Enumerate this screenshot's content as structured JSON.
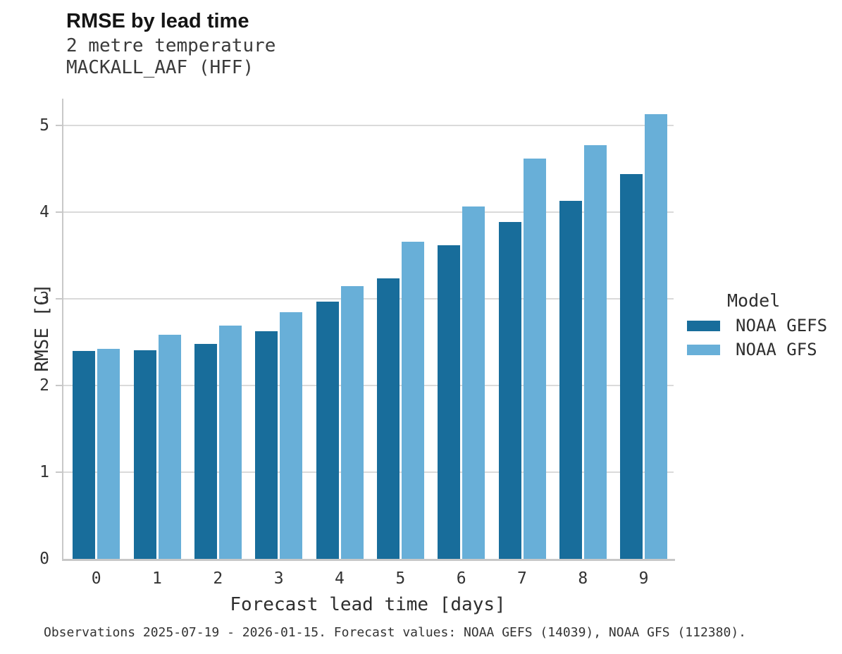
{
  "title": "RMSE by lead time",
  "subtitle1": "2 metre temperature",
  "subtitle2": "MACKALL_AAF (HFF)",
  "caption": "Observations 2025-07-19 - 2026-01-15. Forecast values: NOAA GEFS (14039), NOAA GFS (112380).",
  "legend": {
    "title": "Model",
    "items": [
      {
        "label": "NOAA GEFS",
        "color": "#186d9b"
      },
      {
        "label": "NOAA GFS",
        "color": "#68afd8"
      }
    ]
  },
  "colors": {
    "gefs_bar": "#186d9b",
    "gfs_bar": "#68afd8",
    "gridline": "#dadada",
    "spine": "#c8c8c8"
  },
  "chart_data": {
    "type": "bar",
    "title": "RMSE by lead time",
    "subtitle": "2 metre temperature — MACKALL_AAF (HFF)",
    "xlabel": "Forecast lead time [days]",
    "ylabel": "RMSE [C]",
    "categories": [
      0,
      1,
      2,
      3,
      4,
      5,
      6,
      7,
      8,
      9
    ],
    "series": [
      {
        "name": "NOAA GEFS",
        "color": "#186d9b",
        "values": [
          2.4,
          2.41,
          2.48,
          2.63,
          2.97,
          3.24,
          3.62,
          3.89,
          4.13,
          4.44
        ]
      },
      {
        "name": "NOAA GFS",
        "color": "#68afd8",
        "values": [
          2.42,
          2.59,
          2.69,
          2.85,
          3.15,
          3.66,
          4.07,
          4.62,
          4.77,
          5.13
        ]
      }
    ],
    "ylim": [
      0,
      5.31
    ],
    "yticks": [
      0,
      1,
      2,
      3,
      4,
      5
    ],
    "grid": true,
    "legend_position": "center-right"
  }
}
